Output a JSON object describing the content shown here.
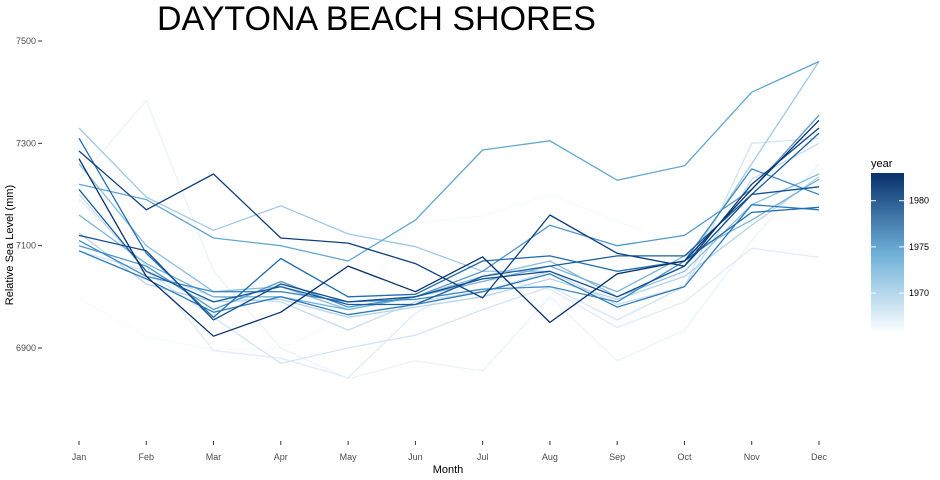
{
  "chart_data": {
    "type": "line",
    "title": "DAYTONA BEACH SHORES",
    "xlabel": "Month",
    "ylabel": "Relative Sea Level (mm)",
    "categories": [
      "Jan",
      "Feb",
      "Mar",
      "Apr",
      "May",
      "Jun",
      "Jul",
      "Aug",
      "Sep",
      "Oct",
      "Nov",
      "Dec"
    ],
    "yticks": [
      6900,
      7100,
      7300,
      7500
    ],
    "ytick_labels": [
      "6900",
      "7100",
      "7300",
      "7500"
    ],
    "ylim": [
      6765,
      7520
    ],
    "grid": false,
    "legend": {
      "title": "year",
      "position": "right",
      "ticks": [
        1970,
        1975,
        1980
      ],
      "tick_labels": [
        "1970",
        "1975",
        "1980"
      ],
      "range": [
        1966,
        1983
      ],
      "color_low": "#f7fbff",
      "color_high": "#08306b"
    },
    "series": [
      {
        "year": 1966,
        "values": [
          6997,
          6922,
          6896,
          6900,
          6960,
          7145,
          7158,
          7200,
          7148,
          7098,
          7240,
          7290
        ]
      },
      {
        "year": 1967,
        "values": [
          7230,
          7384,
          7050,
          6900,
          6840,
          6875,
          6855,
          7000,
          6875,
          6935,
          7110,
          7260
        ]
      },
      {
        "year": 1968,
        "values": [
          7190,
          7060,
          6895,
          6880,
          6842,
          6968,
          7040,
          7015,
          6940,
          6990,
          7095,
          7077
        ]
      },
      {
        "year": 1969,
        "values": [
          7090,
          7050,
          6960,
          6870,
          6900,
          6925,
          6975,
          7020,
          6955,
          7020,
          7300,
          7310
        ]
      },
      {
        "year": 1970,
        "values": [
          7200,
          7050,
          7000,
          6990,
          6935,
          6990,
          7010,
          7050,
          6985,
          7020,
          7230,
          7300
        ]
      },
      {
        "year": 1971,
        "values": [
          7125,
          7025,
          6990,
          6995,
          6960,
          6980,
          7000,
          7035,
          6995,
          7040,
          7140,
          7235
        ]
      },
      {
        "year": 1972,
        "values": [
          7330,
          7195,
          7130,
          7178,
          7123,
          7098,
          7050,
          7050,
          7000,
          7060,
          7260,
          7460
        ]
      },
      {
        "year": 1973,
        "values": [
          7260,
          7100,
          7010,
          7020,
          6975,
          7000,
          7040,
          7070,
          7000,
          7050,
          7180,
          7240
        ]
      },
      {
        "year": 1974,
        "values": [
          7160,
          7065,
          7000,
          7000,
          6975,
          7000,
          7030,
          7060,
          7010,
          7080,
          7150,
          7230
        ]
      },
      {
        "year": 1975,
        "values": [
          7220,
          7190,
          7115,
          7100,
          7070,
          7150,
          7287,
          7305,
          7228,
          7256,
          7400,
          7460
        ]
      },
      {
        "year": 1976,
        "values": [
          7100,
          7060,
          6975,
          7030,
          6980,
          7000,
          7050,
          7140,
          7100,
          7120,
          7210,
          7355
        ]
      },
      {
        "year": 1977,
        "values": [
          7110,
          7040,
          7010,
          7010,
          6990,
          6995,
          7015,
          7020,
          6990,
          7070,
          7250,
          7200
        ]
      },
      {
        "year": 1978,
        "values": [
          7090,
          7035,
          6970,
          7000,
          6965,
          6985,
          7010,
          7045,
          6980,
          7020,
          7180,
          7170
        ]
      },
      {
        "year": 1979,
        "values": [
          7310,
          7085,
          6960,
          7075,
          7000,
          7005,
          7070,
          7080,
          7050,
          7070,
          7165,
          7175
        ]
      },
      {
        "year": 1980,
        "values": [
          7210,
          7050,
          6990,
          7020,
          6985,
          6985,
          7040,
          7060,
          7080,
          7080,
          7200,
          7320
        ]
      },
      {
        "year": 1981,
        "values": [
          7120,
          7090,
          6955,
          7025,
          6990,
          7000,
          7035,
          7050,
          7000,
          7060,
          7200,
          7215
        ]
      },
      {
        "year": 1982,
        "values": [
          7285,
          7170,
          7240,
          7115,
          7105,
          7065,
          6998,
          7160,
          7085,
          7060,
          7220,
          7330
        ]
      },
      {
        "year": 1983,
        "values": [
          7270,
          7040,
          6923,
          6970,
          7060,
          7010,
          7078,
          6950,
          7045,
          7070,
          7210,
          7345
        ]
      }
    ]
  }
}
